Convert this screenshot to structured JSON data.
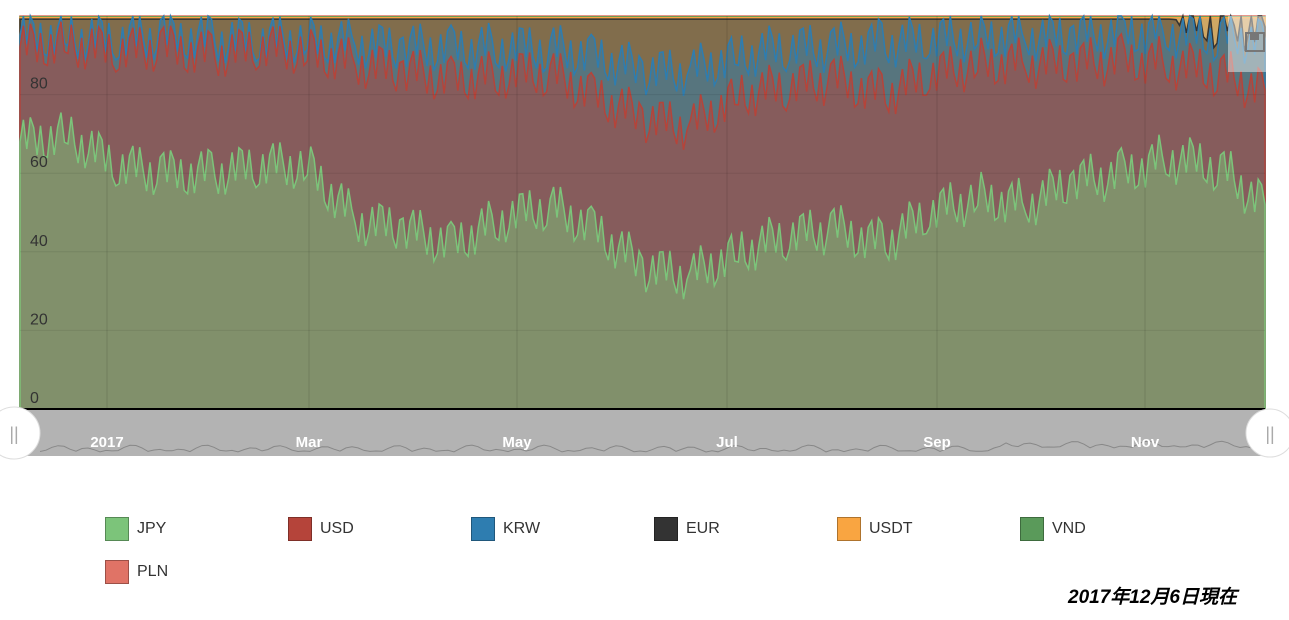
{
  "chart_data": {
    "type": "area",
    "stacked": "percent",
    "x_start": "2016-12-07",
    "x_end": "2017-12-06",
    "x_step_days": 14,
    "ylim": [
      0,
      100
    ],
    "y_ticks": [
      "0",
      "20",
      "40",
      "60",
      "80"
    ],
    "x_ticks": [
      "2017",
      "Mar",
      "May",
      "Jul",
      "Sep",
      "Nov"
    ],
    "series": [
      {
        "name": "JPY",
        "color": "#7cc47a",
        "values": [
          68,
          70,
          62,
          60,
          60,
          62,
          62,
          48,
          46,
          42,
          48,
          52,
          46,
          36,
          34,
          40,
          44,
          46,
          42,
          50,
          54,
          52,
          58,
          60,
          64,
          62,
          52
        ]
      },
      {
        "name": "USD",
        "color": "#b5443a",
        "values": [
          24,
          23,
          29,
          32,
          30,
          30,
          29,
          40,
          40,
          42,
          37,
          34,
          34,
          38,
          38,
          40,
          38,
          38,
          38,
          35,
          34,
          36,
          30,
          29,
          24,
          24,
          29
        ]
      },
      {
        "name": "KRW",
        "color": "#2e7db0",
        "values": [
          3,
          2,
          3,
          3,
          4,
          2,
          3,
          5,
          6,
          8,
          7,
          6,
          10,
          12,
          14,
          10,
          10,
          8,
          13,
          9,
          7,
          7,
          7,
          7,
          8,
          9,
          13
        ]
      },
      {
        "name": "EUR",
        "color": "#333333",
        "values": [
          4.2,
          4.2,
          5.2,
          4.2,
          5.2,
          5.2,
          5.2,
          6.2,
          7.2,
          7.2,
          7.2,
          7.2,
          9.2,
          13.2,
          13.2,
          9.2,
          7.2,
          7.2,
          6.2,
          5.2,
          4.2,
          4.2,
          4.2,
          3.2,
          3.2,
          3.2,
          3.2
        ]
      },
      {
        "name": "USDT",
        "color": "#f9a541",
        "values": [
          0.4,
          0.4,
          0.4,
          0.4,
          0.4,
          0.4,
          0.4,
          0.4,
          0.4,
          0.4,
          0.4,
          0.4,
          0.4,
          0.4,
          0.4,
          0.4,
          0.4,
          0.4,
          0.4,
          0.4,
          0.4,
          0.4,
          0.4,
          0.4,
          0.4,
          1.4,
          2.4
        ]
      },
      {
        "name": "VND",
        "color": "#5a9a5a",
        "values": [
          0.2,
          0.2,
          0.2,
          0.2,
          0.2,
          0.2,
          0.2,
          0.2,
          0.2,
          0.2,
          0.2,
          0.2,
          0.2,
          0.2,
          0.2,
          0.2,
          0.2,
          0.2,
          0.2,
          0.2,
          0.2,
          0.2,
          0.2,
          0.2,
          0.2,
          0.2,
          0.2
        ]
      },
      {
        "name": "PLN",
        "color": "#e07366",
        "values": [
          0.2,
          0.2,
          0.2,
          0.2,
          0.2,
          0.2,
          0.2,
          0.2,
          0.2,
          0.2,
          0.2,
          0.2,
          0.2,
          0.2,
          0.2,
          0.2,
          0.2,
          0.2,
          0.2,
          0.2,
          0.2,
          0.2,
          0.2,
          0.2,
          0.2,
          0.2,
          0.2
        ]
      }
    ],
    "legend": "bottom"
  },
  "as_of": "2017年12月6日現在"
}
